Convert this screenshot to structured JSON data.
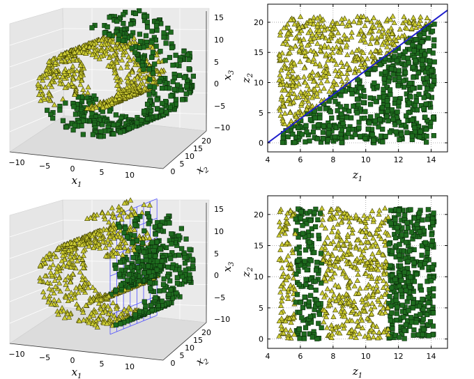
{
  "figure": {
    "caption": ""
  },
  "colors": {
    "class_a_fill": "#cccc33",
    "class_a_edge": "#3d3d00",
    "class_b_fill": "#1e6b1e",
    "class_b_edge": "#0a2a0a",
    "boundary_line": "#1f1fcc",
    "plane_grid": "#5050ff"
  },
  "chart_data": [
    {
      "id": "top-left-3d",
      "type": "scatter3d",
      "title": "",
      "xlabel": "x",
      "xlabel_sub": "1",
      "ylabel": "x",
      "ylabel_sub": "2",
      "zlabel": "x",
      "zlabel_sub": "3",
      "x_ticks": [
        "−10",
        "−5",
        "0",
        "5",
        "10"
      ],
      "y_ticks": [
        "0",
        "5",
        "10",
        "15",
        "20"
      ],
      "z_ticks": [
        "15",
        "10",
        "5",
        "0",
        "−5",
        "−10"
      ],
      "series": [
        {
          "marker": "triangle",
          "shape": "inner swiss-roll layers"
        },
        {
          "marker": "square",
          "shape": "outer swiss-roll layers"
        }
      ],
      "grid": true
    },
    {
      "id": "top-right-2d",
      "type": "scatter",
      "title": "",
      "xlabel": "z",
      "xlabel_sub": "1",
      "ylabel": "z",
      "ylabel_sub": "2",
      "xlim": [
        4,
        15
      ],
      "ylim": [
        -1.5,
        23
      ],
      "x_ticks": [
        "4",
        "6",
        "8",
        "10",
        "12",
        "14"
      ],
      "y_ticks": [
        "0",
        "5",
        "10",
        "15",
        "20"
      ],
      "points_x_range": [
        4.7,
        14.2
      ],
      "points_y_range": [
        0,
        21
      ],
      "decision_boundary": {
        "x": [
          4,
          15
        ],
        "y": [
          0,
          22
        ]
      },
      "series": [
        {
          "marker": "triangle",
          "region": "above line z2 = 2*(z1 - 4)"
        },
        {
          "marker": "square",
          "region": "below line z2 = 2*(z1 - 4)"
        }
      ],
      "grid": true
    },
    {
      "id": "bottom-left-3d",
      "type": "scatter3d",
      "title": "",
      "xlabel": "x",
      "xlabel_sub": "1",
      "ylabel": "x",
      "ylabel_sub": "2",
      "zlabel": "x",
      "zlabel_sub": "3",
      "x_ticks": [
        "−10",
        "−5",
        "0",
        "5",
        "10"
      ],
      "y_ticks": [
        "0",
        "5",
        "10",
        "15",
        "20"
      ],
      "z_ticks": [
        "15",
        "10",
        "5",
        "0",
        "−5",
        "−10"
      ],
      "decision_plane": {
        "x1": 5
      },
      "series": [
        {
          "marker": "triangle",
          "region": "x1 < 5"
        },
        {
          "marker": "square",
          "region": "x1 >= 5"
        }
      ],
      "grid": true
    },
    {
      "id": "bottom-right-2d",
      "type": "scatter",
      "title": "",
      "xlabel": "z",
      "xlabel_sub": "1",
      "ylabel": "z",
      "ylabel_sub": "2",
      "xlim": [
        4,
        15
      ],
      "ylim": [
        -1.5,
        23
      ],
      "x_ticks": [
        "4",
        "6",
        "8",
        "10",
        "12",
        "14"
      ],
      "y_ticks": [
        "0",
        "5",
        "10",
        "15",
        "20"
      ],
      "points_x_range": [
        4.7,
        14.2
      ],
      "points_y_range": [
        0,
        21
      ],
      "series": [
        {
          "marker": "square",
          "region": "5.7 < z1 < 7.3 or z1 > 11.4"
        },
        {
          "marker": "triangle",
          "region": "otherwise"
        }
      ],
      "grid": true
    }
  ]
}
